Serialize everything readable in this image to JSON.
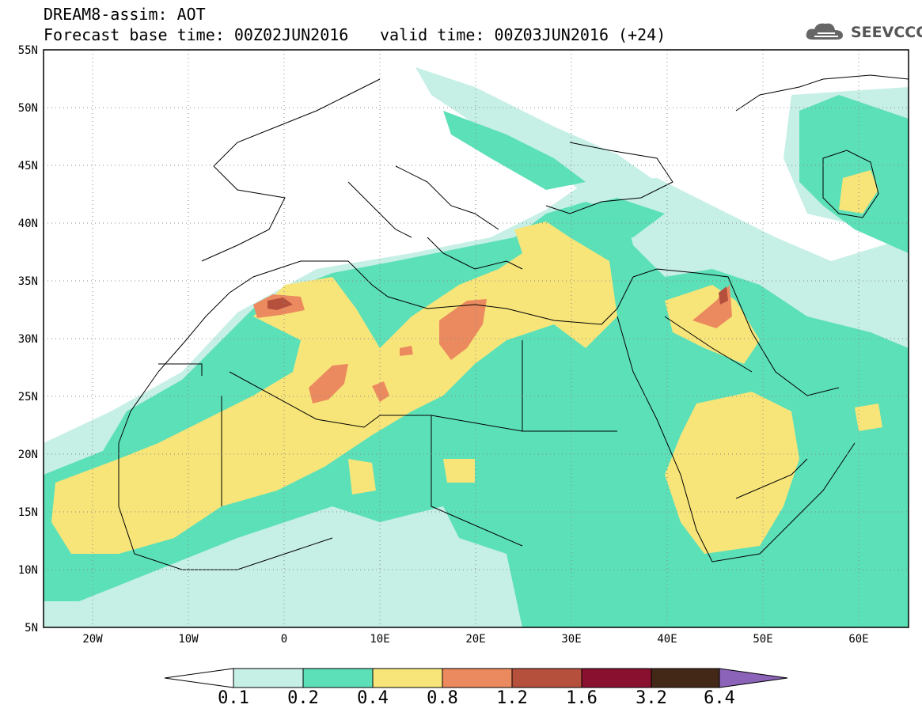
{
  "header": {
    "model_title": "DREAM8-assim: AOT",
    "base_time": "Forecast base time: 00Z02JUN2016",
    "valid_time": "valid time: 00Z03JUN2016 (+24)"
  },
  "logo": {
    "text": "SEEVCCC",
    "icon": "cloud-icon"
  },
  "map": {
    "lon_range": [
      -25,
      65
    ],
    "lat_range": [
      5,
      55
    ],
    "lat_labels": [
      "55N",
      "50N",
      "45N",
      "40N",
      "35N",
      "30N",
      "25N",
      "20N",
      "15N",
      "10N",
      "5N"
    ],
    "lon_labels": [
      "20W",
      "10W",
      "0",
      "10E",
      "20E",
      "30E",
      "40E",
      "50E",
      "60E"
    ]
  },
  "colorbar": {
    "labels": [
      "0.1",
      "0.2",
      "0.4",
      "0.8",
      "1.2",
      "1.6",
      "3.2",
      "6.4"
    ],
    "colors": [
      "#c6efe6",
      "#5ce0b8",
      "#f7e57a",
      "#ec8a5f",
      "#b5503c",
      "#8a1030",
      "#432818",
      "#8b63b8"
    ]
  }
}
